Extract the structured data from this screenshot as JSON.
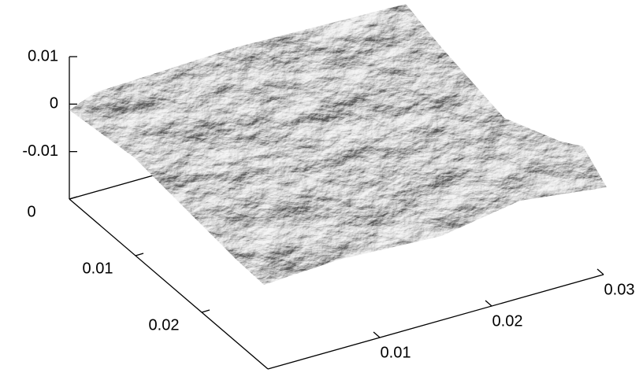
{
  "chart_data": {
    "type": "surface",
    "xlim": [
      0,
      0.03
    ],
    "xticks": [
      0,
      0.01,
      0.02
    ],
    "ylim": [
      0,
      0.03
    ],
    "yticks": [
      0.01,
      0.02,
      0.03
    ],
    "zlim": [
      -0.02,
      0.01
    ],
    "zticks": [
      0.01,
      0,
      -0.01
    ],
    "color": "#9a9a9a"
  }
}
